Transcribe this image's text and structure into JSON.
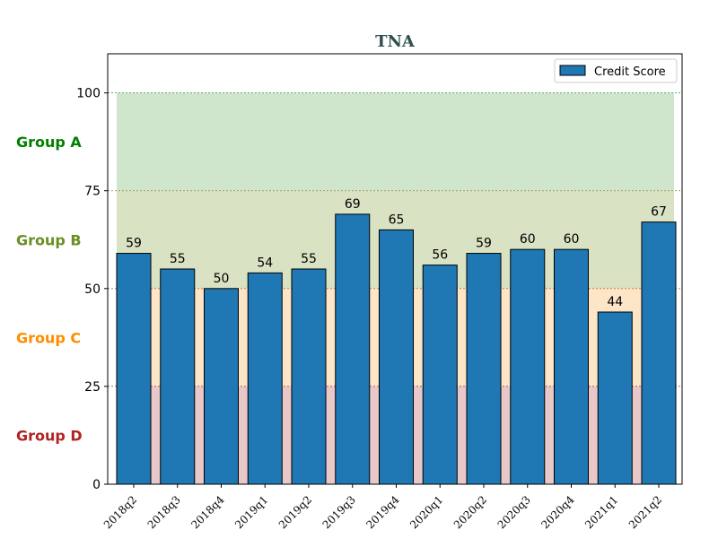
{
  "chart_data": {
    "type": "bar",
    "title": "TNA",
    "xlabel": "",
    "ylabel": "",
    "categories": [
      "2018q2",
      "2018q3",
      "2018q4",
      "2019q1",
      "2019q2",
      "2019q3",
      "2019q4",
      "2020q1",
      "2020q2",
      "2020q3",
      "2020q4",
      "2021q1",
      "2021q2"
    ],
    "series": [
      {
        "name": "Credit Score",
        "values": [
          59,
          55,
          50,
          54,
          55,
          69,
          65,
          56,
          59,
          60,
          60,
          44,
          67
        ],
        "color": "#1f77b4"
      }
    ],
    "ylim": [
      0,
      110
    ],
    "yticks": [
      "0",
      "25",
      "50",
      "75",
      "100"
    ],
    "legend_position": "top-right",
    "bands": [
      {
        "label": "Group A",
        "from": 75,
        "to": 100,
        "color": "#008000",
        "fill": "#cfe5cc",
        "line_color": "#2e8b2e"
      },
      {
        "label": "Group B",
        "from": 50,
        "to": 75,
        "color": "#6b8e23",
        "fill": "#d9e2c3",
        "line_color": "#8a8a2a"
      },
      {
        "label": "Group C",
        "from": 25,
        "to": 50,
        "color": "#ff8c00",
        "fill": "#fde5c8",
        "line_color": "#d2691e"
      },
      {
        "label": "Group D",
        "from": 0,
        "to": 25,
        "color": "#b22222",
        "fill": "#e8c8c8",
        "line_color": "#b22222"
      }
    ]
  }
}
